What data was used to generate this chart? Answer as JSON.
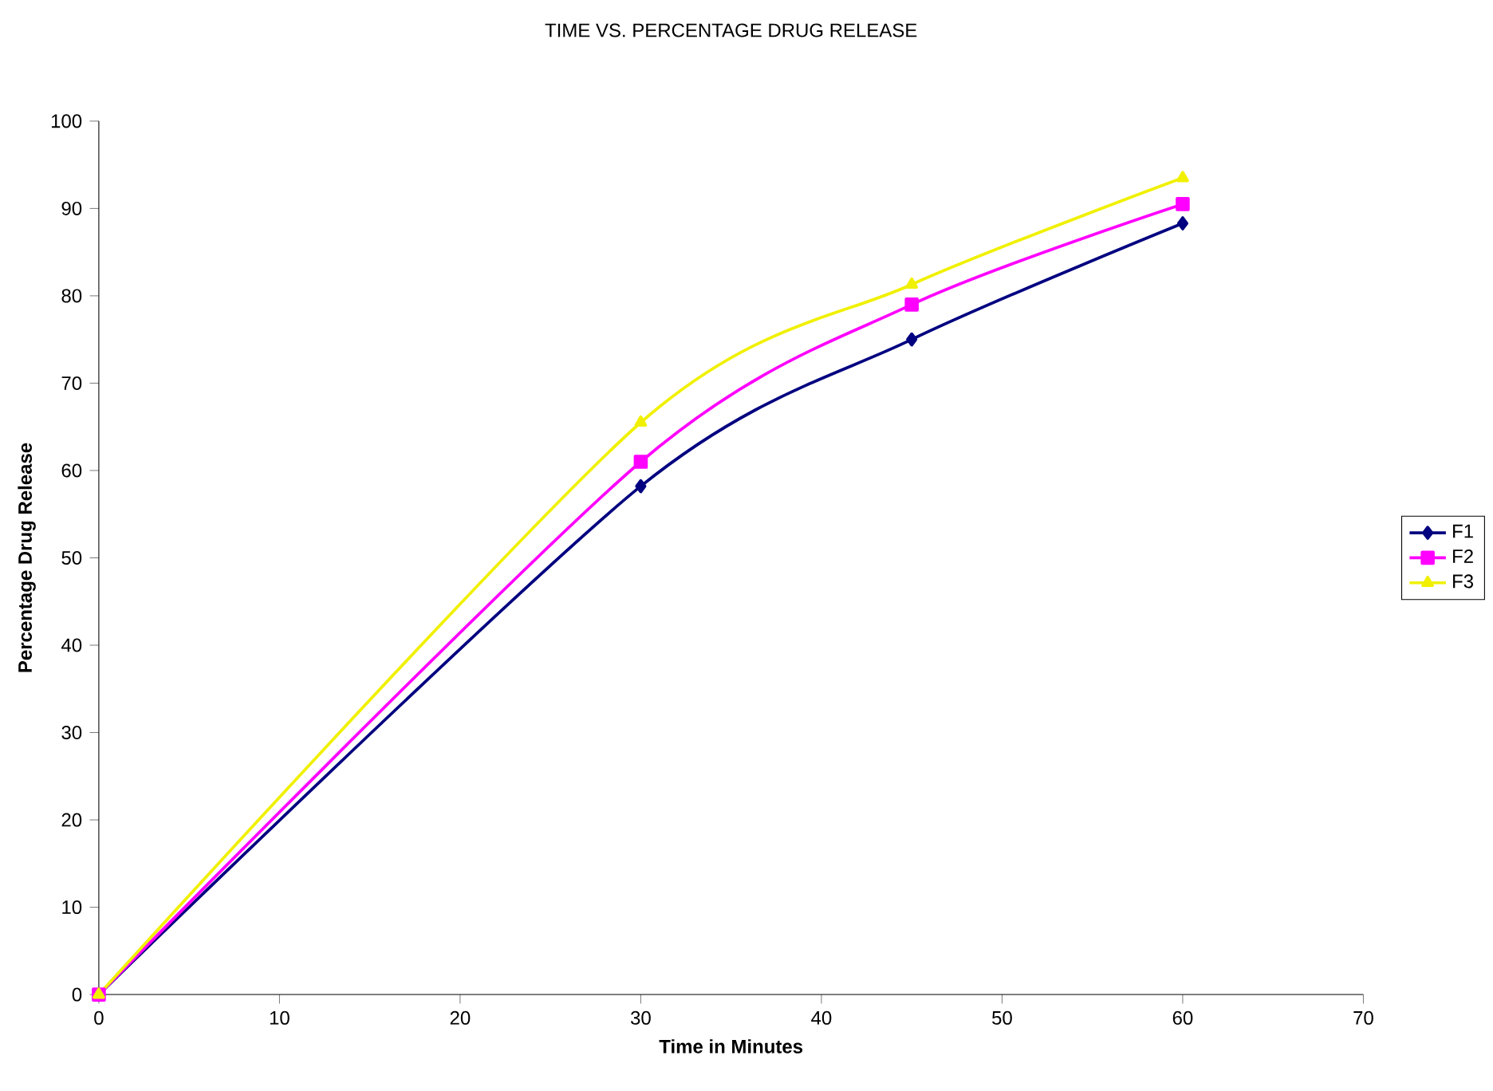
{
  "chart_data": {
    "type": "line",
    "title": "TIME VS. PERCENTAGE DRUG RELEASE",
    "xlabel": "Time in Minutes",
    "ylabel": "Percentage Drug Release",
    "x": [
      0,
      30,
      45,
      60
    ],
    "xlim": [
      0,
      70
    ],
    "xticks": [
      0,
      10,
      20,
      30,
      40,
      50,
      60,
      70
    ],
    "ylim": [
      0,
      100
    ],
    "yticks": [
      0,
      10,
      20,
      30,
      40,
      50,
      60,
      70,
      80,
      90,
      100
    ],
    "grid": false,
    "legend": "right",
    "line_style": "solid",
    "series": [
      {
        "name": "F1",
        "color": "#000080",
        "marker": "diamond",
        "values": [
          0,
          58.2,
          75,
          88.3
        ]
      },
      {
        "name": "F2",
        "color": "#ff00ff",
        "marker": "square",
        "values": [
          0,
          61,
          79,
          90.5
        ]
      },
      {
        "name": "F3",
        "color": "#f0f000",
        "marker": "triangle",
        "values": [
          0,
          65.5,
          81.3,
          93.5
        ]
      }
    ]
  }
}
